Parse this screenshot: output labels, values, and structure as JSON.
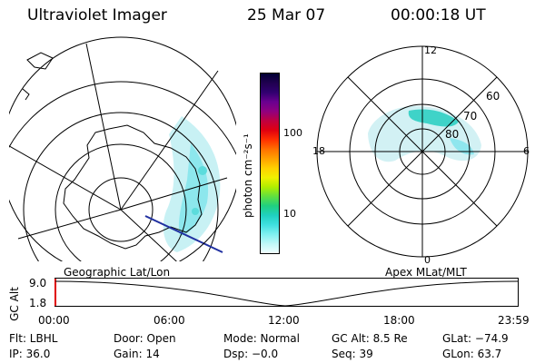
{
  "header": {
    "instrument": "Ultraviolet Imager",
    "date": "25 Mar 07",
    "time": "00:00:18 UT"
  },
  "colorbar": {
    "label": "photon cm⁻²s⁻¹",
    "ticks": [
      "100",
      "10"
    ],
    "colors": [
      "#000033",
      "#200050",
      "#300070",
      "#6a0090",
      "#900080",
      "#c00040",
      "#e00010",
      "#ff3000",
      "#ff7000",
      "#ffa000",
      "#ffd000",
      "#f0f000",
      "#b0ee00",
      "#60e040",
      "#20d080",
      "#20d0c0",
      "#40e0e0",
      "#80f0f0",
      "#c0f8f8",
      "#f0ffff"
    ]
  },
  "polar": {
    "mlt_labels": [
      "12",
      "18",
      "6",
      "0"
    ],
    "lat_labels": [
      "60",
      "70",
      "80"
    ]
  },
  "timeline": {
    "left_label": "Geographic Lat/Lon",
    "right_label": "Apex MLat/MLT",
    "axis_title": "GC Alt",
    "y_ticks": [
      "9.0",
      "1.8"
    ],
    "x_ticks": [
      "00:00",
      "06:00",
      "12:00",
      "18:00",
      "23:59"
    ]
  },
  "status": {
    "flt": "Flt: LBHL",
    "door": "Door: Open",
    "mode": "Mode: Normal",
    "gcalt": "GC Alt: 8.5 Re",
    "glat": "GLat: −74.9",
    "ip": "IP: 36.0",
    "gain": "Gain: 14",
    "dsp": "Dsp:   −0.0",
    "seq": "Seq: 39",
    "glon": "GLon:  63.7"
  }
}
